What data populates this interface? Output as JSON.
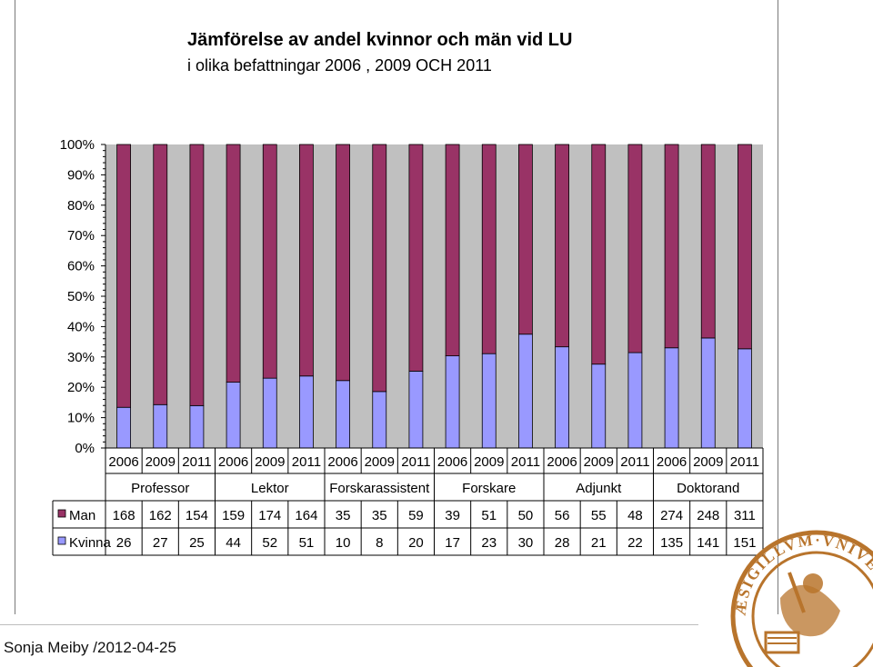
{
  "chart_data": {
    "type": "bar",
    "stacked": "percent",
    "title": "Jämförelse av andel kvinnor och män vid LU",
    "subtitle": "i olika befattningar 2006 , 2009 OCH 2011",
    "y_ticks": [
      "0%",
      "10%",
      "20%",
      "30%",
      "40%",
      "50%",
      "60%",
      "70%",
      "80%",
      "90%",
      "100%"
    ],
    "ylim": [
      0,
      100
    ],
    "groups": [
      {
        "name": "Professor",
        "years": [
          "2006",
          "2009",
          "2011"
        ]
      },
      {
        "name": "Lektor",
        "years": [
          "2006",
          "2009",
          "2011"
        ]
      },
      {
        "name": "Forskarassistent",
        "years": [
          "2006",
          "2009",
          "2011"
        ]
      },
      {
        "name": "Forskare",
        "years": [
          "2006",
          "2009",
          "2011"
        ]
      },
      {
        "name": "Adjunkt",
        "years": [
          "2006",
          "2009",
          "2011"
        ]
      },
      {
        "name": "Doktorand",
        "years": [
          "2006",
          "2009",
          "2011"
        ]
      }
    ],
    "series": [
      {
        "name": "Man",
        "color": "#993366",
        "values": [
          168,
          162,
          154,
          159,
          174,
          164,
          35,
          35,
          59,
          39,
          51,
          50,
          56,
          55,
          48,
          274,
          248,
          311
        ]
      },
      {
        "name": "Kvinna",
        "color": "#9999ff",
        "values": [
          26,
          27,
          25,
          44,
          52,
          51,
          10,
          8,
          20,
          17,
          23,
          30,
          28,
          21,
          22,
          135,
          141,
          151
        ]
      }
    ],
    "plot_background": "#c0c0c0",
    "grid": false,
    "legend": "table-below"
  },
  "footer": {
    "text": "Sonja Meiby /2012-04-25"
  },
  "logo": {
    "name": "lund-university-seal",
    "text": "SIGILLUM UNIVERSITATIS GOTHORUM CAROLINAE",
    "color": "#b8742c"
  }
}
